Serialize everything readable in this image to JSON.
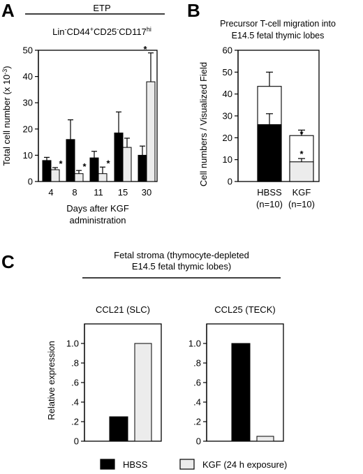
{
  "chart_data": [
    {
      "panel": "A",
      "type": "bar",
      "title": "ETP",
      "subtitle": "Lin-CD44+CD25-CD117hi",
      "ylabel": "Total cell number (x 10-3)",
      "xlabel_line1": "Days after KGF",
      "xlabel_line2": "administration",
      "ylim": [
        0,
        50
      ],
      "yticks": [
        "0",
        "10",
        "20",
        "30",
        "40",
        "50"
      ],
      "categories": [
        "4",
        "8",
        "11",
        "15",
        "30"
      ],
      "series": [
        {
          "name": "HBSS",
          "color": "#000000",
          "values": [
            8,
            16,
            9,
            18.5,
            10
          ],
          "errors": [
            1.2,
            7.5,
            2.5,
            8,
            3.5
          ]
        },
        {
          "name": "KGF (24 h exposure)",
          "color": "#ececec",
          "values": [
            4.5,
            3,
            3,
            13,
            38
          ],
          "errors": [
            0.8,
            1.2,
            2.5,
            3.5,
            11
          ]
        }
      ],
      "significance": [
        "*",
        "*",
        "*",
        "",
        "*"
      ]
    },
    {
      "panel": "B",
      "type": "bar",
      "title_line1": "Precursor T-cell migration into",
      "title_line2": "E14.5 fetal thymic lobes",
      "ylabel": "Cell numbers / Visualized Field",
      "ylim": [
        0,
        60
      ],
      "yticks": [
        "0",
        "10",
        "20",
        "30",
        "40",
        "50",
        "60"
      ],
      "categories": [
        "HBSS",
        "KGF"
      ],
      "category_n": [
        "(n=10)",
        "(n=10)"
      ],
      "stacked": true,
      "bottom_values": [
        26,
        9
      ],
      "bottom_errors": [
        5,
        1.5
      ],
      "total_values": [
        43.5,
        21
      ],
      "total_errors": [
        6.5,
        2.5
      ],
      "significance_top": [
        "",
        "*"
      ],
      "significance_bottom": [
        "",
        "*"
      ]
    },
    {
      "panel": "C",
      "type": "bar",
      "title_line1": "Fetal stroma (thymocyte-depleted",
      "title_line2": "E14.5 fetal thymic lobes)",
      "ylabel": "Relative expression",
      "ylim": [
        0,
        1.2
      ],
      "yticks": [
        "0",
        ".2",
        ".4",
        ".6",
        ".8",
        "1.0"
      ],
      "subplots": [
        {
          "name": "CCL21 (SLC)",
          "values": [
            0.25,
            1.0
          ]
        },
        {
          "name": "CCL25 (TECK)",
          "values": [
            1.0,
            0.05
          ]
        }
      ]
    }
  ],
  "panel_labels": {
    "a": "A",
    "b": "B",
    "c": "C"
  },
  "legend": [
    {
      "label": "HBSS",
      "color": "#000000"
    },
    {
      "label": "KGF (24 h exposure)",
      "color": "#ececec"
    }
  ]
}
